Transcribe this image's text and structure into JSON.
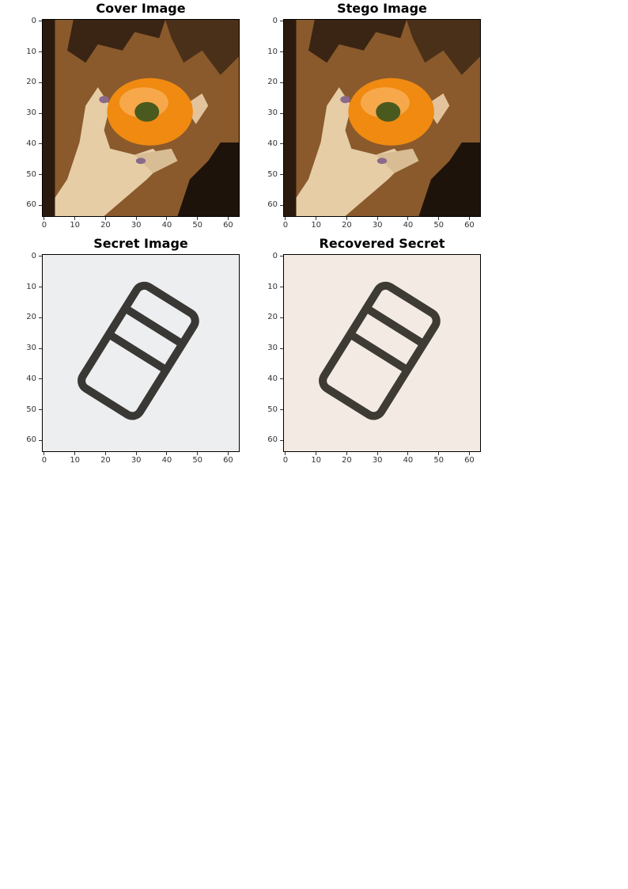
{
  "chart_data": [
    {
      "type": "image",
      "title": "Cover Image",
      "content": "orange-in-hand",
      "xlim": [
        0,
        64
      ],
      "ylim": [
        64,
        0
      ],
      "xticks": [
        "0",
        "10",
        "20",
        "30",
        "40",
        "50",
        "60"
      ],
      "yticks": [
        "0",
        "10",
        "20",
        "30",
        "40",
        "50",
        "60"
      ]
    },
    {
      "type": "image",
      "title": "Stego Image",
      "content": "orange-in-hand",
      "xlim": [
        0,
        64
      ],
      "ylim": [
        64,
        0
      ],
      "xticks": [
        "0",
        "10",
        "20",
        "30",
        "40",
        "50",
        "60"
      ],
      "yticks": [
        "0",
        "10",
        "20",
        "30",
        "40",
        "50",
        "60"
      ]
    },
    {
      "type": "image",
      "title": "Secret Image",
      "content": "belt-buckle",
      "background": "#eceef0",
      "xlim": [
        0,
        64
      ],
      "ylim": [
        64,
        0
      ],
      "xticks": [
        "0",
        "10",
        "20",
        "30",
        "40",
        "50",
        "60"
      ],
      "yticks": [
        "0",
        "10",
        "20",
        "30",
        "40",
        "50",
        "60"
      ]
    },
    {
      "type": "image",
      "title": "Recovered Secret",
      "content": "belt-buckle",
      "background": "#f3ebe3",
      "xlim": [
        0,
        64
      ],
      "ylim": [
        64,
        0
      ],
      "xticks": [
        "0",
        "10",
        "20",
        "30",
        "40",
        "50",
        "60"
      ],
      "yticks": [
        "0",
        "10",
        "20",
        "30",
        "40",
        "50",
        "60"
      ]
    }
  ]
}
